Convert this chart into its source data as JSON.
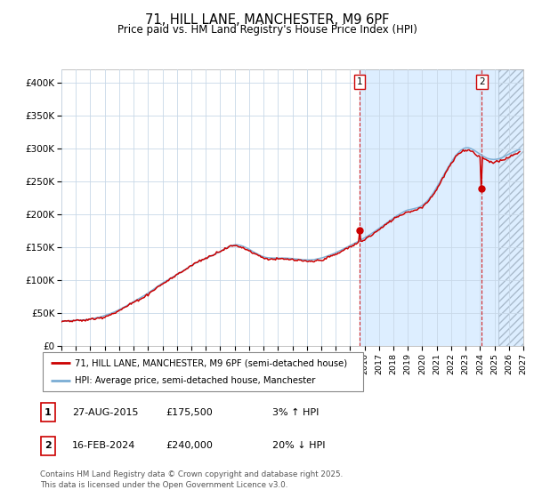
{
  "title": "71, HILL LANE, MANCHESTER, M9 6PF",
  "subtitle": "Price paid vs. HM Land Registry's House Price Index (HPI)",
  "hpi_label": "HPI: Average price, semi-detached house, Manchester",
  "property_label": "71, HILL LANE, MANCHESTER, M9 6PF (semi-detached house)",
  "ylim": [
    0,
    420000
  ],
  "xlim_start": 1995.0,
  "xlim_end": 2027.0,
  "marker1_date": 2015.65,
  "marker1_value": 175500,
  "marker2_date": 2024.12,
  "marker2_value": 240000,
  "marker1_text": "27-AUG-2015",
  "marker1_price": "£175,500",
  "marker1_hpi": "3% ↑ HPI",
  "marker2_text": "16-FEB-2024",
  "marker2_price": "£240,000",
  "marker2_hpi": "20% ↓ HPI",
  "red_color": "#cc0000",
  "blue_color": "#7aadd4",
  "light_blue_bg": "#ddeeff",
  "grid_color": "#c8d8e8",
  "footer": "Contains HM Land Registry data © Crown copyright and database right 2025.\nThis data is licensed under the Open Government Licence v3.0.",
  "ytick_labels": [
    "£0",
    "£50K",
    "£100K",
    "£150K",
    "£200K",
    "£250K",
    "£300K",
    "£350K",
    "£400K"
  ],
  "ytick_values": [
    0,
    50000,
    100000,
    150000,
    200000,
    250000,
    300000,
    350000,
    400000
  ],
  "hatch_start": 2025.3
}
